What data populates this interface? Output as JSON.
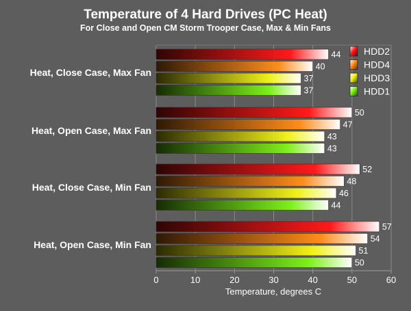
{
  "chart_data": {
    "type": "bar",
    "orientation": "horizontal",
    "title": "Temperature of 4 Hard Drives (PC Heat)",
    "subtitle": "For Close and Open CM Storm Trooper Case, Max & Min Fans",
    "xlabel": "Temperature, degrees C",
    "ylabel": "",
    "xlim": [
      0,
      60
    ],
    "xticks": [
      0,
      10,
      20,
      30,
      40,
      50,
      60
    ],
    "grid": true,
    "legend_position": "top-right",
    "categories": [
      "Heat, Close Case, Max Fan",
      "Heat, Open Case, Max Fan",
      "Heat, Close Case, Min Fan",
      "Heat, Open Case, Min Fan"
    ],
    "series": [
      {
        "name": "HDD2",
        "color": "#ff1a1a",
        "values": [
          44,
          50,
          52,
          57
        ]
      },
      {
        "name": "HDD4",
        "color": "#ff8c1a",
        "values": [
          40,
          47,
          48,
          54
        ]
      },
      {
        "name": "HDD3",
        "color": "#f0f01a",
        "values": [
          37,
          43,
          46,
          51
        ]
      },
      {
        "name": "HDD1",
        "color": "#7cf01a",
        "values": [
          37,
          43,
          44,
          50
        ]
      }
    ]
  }
}
